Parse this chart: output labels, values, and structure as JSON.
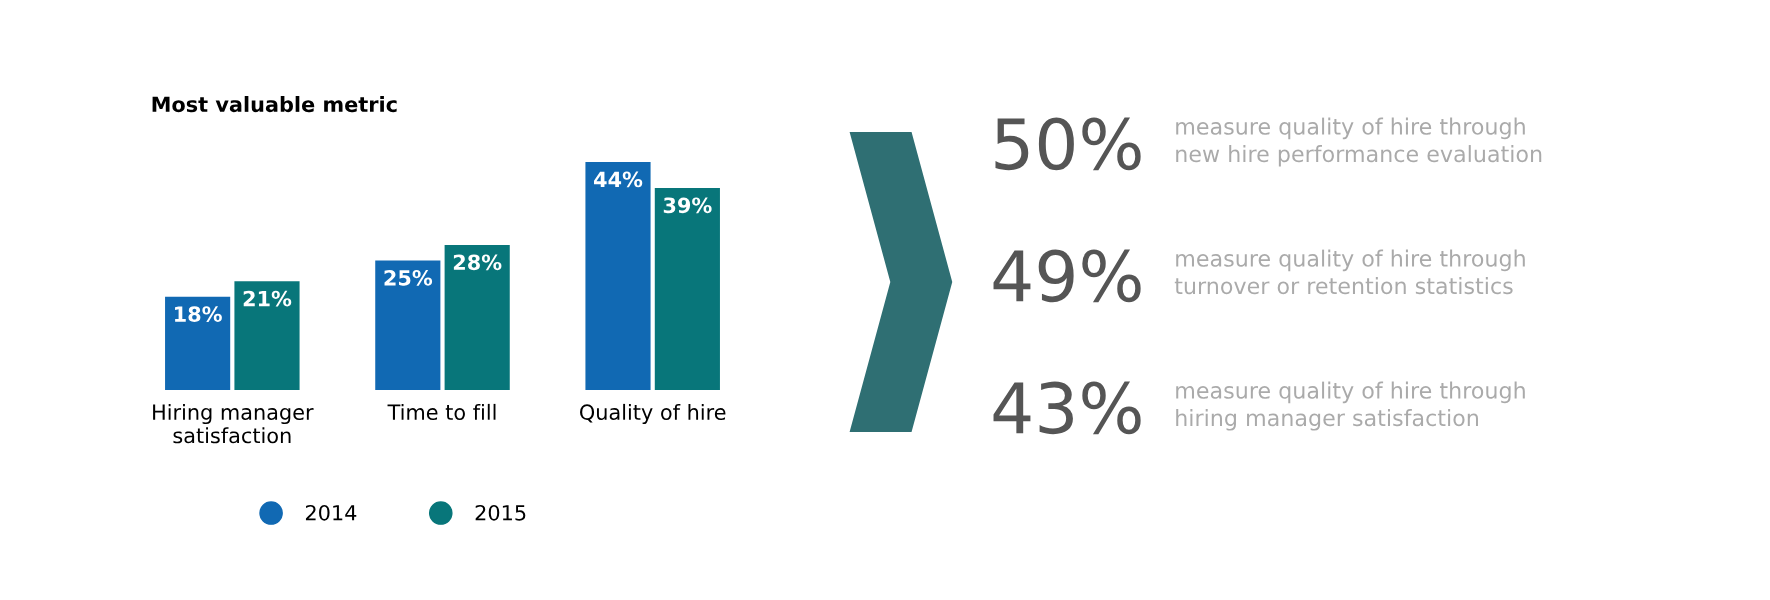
{
  "chart_data": [
    {
      "type": "bar",
      "title": "Most valuable metric",
      "categories": [
        "Hiring manager\nsatisfaction",
        "Time to fill",
        "Quality of hire"
      ],
      "series": [
        {
          "name": "2014",
          "color": "#1169b3",
          "values": [
            18,
            25,
            44
          ],
          "value_labels": [
            "18%",
            "25%",
            "44%"
          ]
        },
        {
          "name": "2015",
          "color": "#08767a",
          "values": [
            21,
            28,
            39
          ],
          "value_labels": [
            "21%",
            "28%",
            "39%"
          ]
        }
      ],
      "legend": "bottom",
      "grid": false,
      "tick_labels": "x"
    },
    {
      "type": "other",
      "annotations": [
        "50%",
        "measure quality of hire through\nnew hire performance evaluation",
        "49%",
        "measure quality of hire through\nturnover or retention statistics",
        "43%",
        "measure quality of hire through\nhiring manager satisfaction"
      ]
    }
  ]
}
